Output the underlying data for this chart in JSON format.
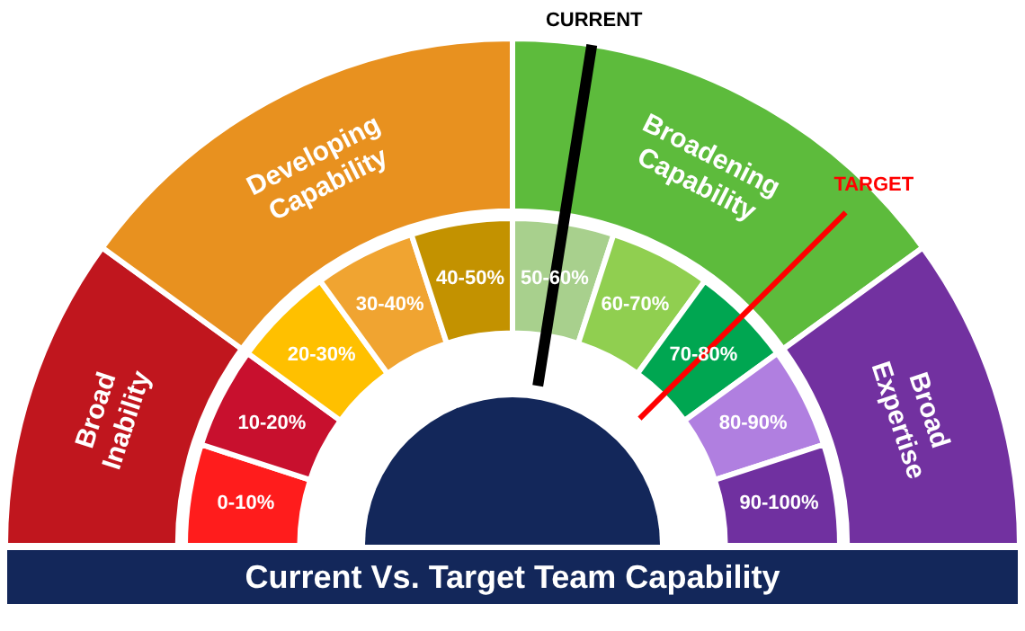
{
  "chart_data": [
    {
      "type": "donut",
      "title": "Current Vs. Target Team Capability",
      "categories": [
        "Broad Inability",
        "Developing Capability",
        "Broadening Capability",
        "Broad Expertise"
      ],
      "values": [
        20,
        30,
        30,
        20
      ],
      "colors": [
        "#c0161e",
        "#e8911f",
        "#5dbb3c",
        "#7231a0"
      ]
    },
    {
      "type": "donut",
      "categories": [
        "0-10%",
        "10-20%",
        "20-30%",
        "30-40%",
        "40-50%",
        "50-60%",
        "60-70%",
        "70-80%",
        "80-90%",
        "90-100%"
      ],
      "values": [
        10,
        10,
        10,
        10,
        10,
        10,
        10,
        10,
        10,
        10
      ],
      "colors": [
        "#ff1c1c",
        "#c8102e",
        "#ffc000",
        "#f0a431",
        "#c39200",
        "#a8d08d",
        "#90cf50",
        "#00a651",
        "#b07fe0",
        "#7030a0"
      ],
      "annotations": [
        {
          "text": "CURRENT",
          "x": "50-60%"
        },
        {
          "text": "TARGET",
          "x": "70-80%"
        }
      ]
    }
  ]
}
